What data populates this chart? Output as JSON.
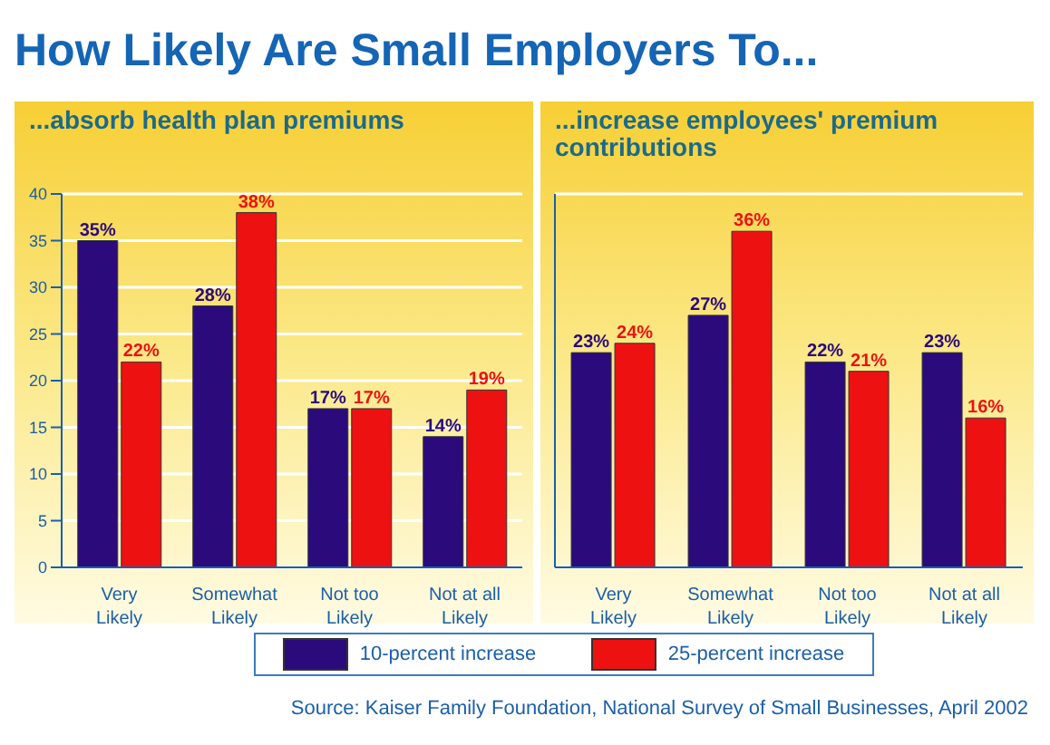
{
  "chart_data": [
    {
      "type": "bar",
      "title": "How Likely Are Small Employers To...",
      "subtitle": "...absorb health plan premiums",
      "categories": [
        "Very Likely",
        "Somewhat Likely",
        "Not too Likely",
        "Not at all Likely"
      ],
      "series": [
        {
          "name": "10-percent increase",
          "color": "#2b0a7c",
          "values": [
            35,
            28,
            17,
            14
          ],
          "value_labels": [
            "35%",
            "28%",
            "17%",
            "14%"
          ]
        },
        {
          "name": "25-percent increase",
          "color": "#ee1111",
          "values": [
            22,
            38,
            17,
            19
          ],
          "value_labels": [
            "22%",
            "38%",
            "17%",
            "19%"
          ]
        }
      ],
      "ylim": [
        0,
        40
      ],
      "yticks": [
        0,
        5,
        10,
        15,
        20,
        25,
        30,
        35,
        40
      ],
      "grid": "y",
      "legend": "bottom"
    },
    {
      "type": "bar",
      "subtitle": "...increase employees' premium contributions",
      "categories": [
        "Very Likely",
        "Somewhat Likely",
        "Not too Likely",
        "Not at all Likely"
      ],
      "series": [
        {
          "color": "#2b0a7c",
          "values": [
            23,
            27,
            22,
            23
          ],
          "value_labels": [
            "23%",
            "27%",
            "22%",
            "23%"
          ]
        },
        {
          "color": "#ee1111",
          "values": [
            24,
            36,
            21,
            16
          ],
          "value_labels": [
            "24%",
            "36%",
            "21%",
            "16%"
          ]
        }
      ],
      "ylim": [
        0,
        40
      ],
      "yticks": [
        0,
        5,
        10,
        15,
        20,
        25,
        30,
        35,
        40
      ],
      "grid": "y",
      "tick_labels": "x",
      "annotations": [
        "Source: Kaiser Family Foundation, National Survey of Small Businesses, April 2002"
      ]
    }
  ]
}
